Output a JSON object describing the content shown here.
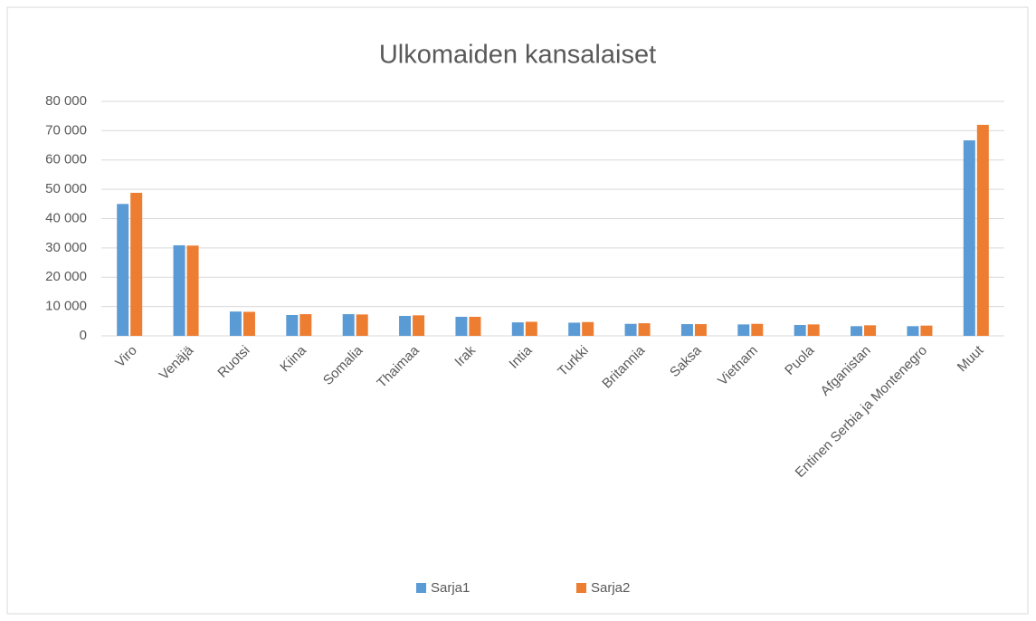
{
  "chart_data": {
    "type": "bar",
    "title": "Ulkomaiden kansalaiset",
    "categories": [
      "Viro",
      "Venäjä",
      "Ruotsi",
      "Kiina",
      "Somalia",
      "Thaimaa",
      "Irak",
      "Intia",
      "Turkki",
      "Britannia",
      "Saksa",
      "Vietnam",
      "Puola",
      "Afganistan",
      "Entinen Serbia ja Montenegro",
      "Muut"
    ],
    "series": [
      {
        "name": "Sarja1",
        "color": "#5b9bd5",
        "values": [
          45000,
          30900,
          8300,
          7100,
          7400,
          6800,
          6500,
          4600,
          4500,
          4100,
          4000,
          3900,
          3700,
          3300,
          3300,
          66700
        ]
      },
      {
        "name": "Sarja2",
        "color": "#ed7d31",
        "values": [
          48800,
          30800,
          8200,
          7400,
          7300,
          7000,
          6500,
          4800,
          4700,
          4300,
          4000,
          4100,
          3900,
          3600,
          3500,
          72000
        ]
      }
    ],
    "ylim": [
      0,
      80000
    ],
    "yticks": [
      0,
      {
        "value": 10000,
        "label": "10 000"
      },
      {
        "value": 20000,
        "label": "20 000"
      },
      {
        "value": 30000,
        "label": "30 000"
      },
      {
        "value": 40000,
        "label": "40 000"
      },
      {
        "value": 50000,
        "label": "50 000"
      },
      {
        "value": 60000,
        "label": "60 000"
      },
      {
        "value": 70000,
        "label": "70 000"
      },
      {
        "value": 80000,
        "label": "80 000"
      }
    ],
    "grid": true,
    "legend": "bottom"
  }
}
